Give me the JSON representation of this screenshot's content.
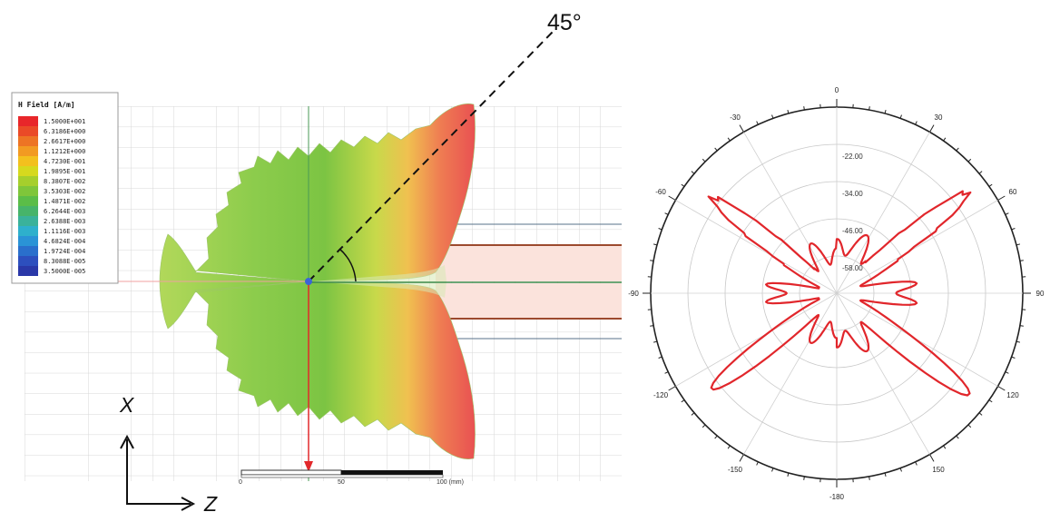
{
  "field_plot": {
    "angle_annotation": "45°",
    "legend": {
      "title": "H Field [A/m]",
      "entries": [
        {
          "label": "1.5000E+001",
          "color": "#e8262a"
        },
        {
          "label": "6.3186E+000",
          "color": "#ea4a27"
        },
        {
          "label": "2.6617E+000",
          "color": "#ed7424"
        },
        {
          "label": "1.1212E+000",
          "color": "#f29a22"
        },
        {
          "label": "4.7230E-001",
          "color": "#f3c01e"
        },
        {
          "label": "1.9895E-001",
          "color": "#d6d91e"
        },
        {
          "label": "8.3807E-002",
          "color": "#a6cf2c"
        },
        {
          "label": "3.5303E-002",
          "color": "#7fc63a"
        },
        {
          "label": "1.4871E-002",
          "color": "#5bbd48"
        },
        {
          "label": "6.2644E-003",
          "color": "#47b46a"
        },
        {
          "label": "2.6388E-003",
          "color": "#3ab29a"
        },
        {
          "label": "1.1116E-003",
          "color": "#2eb0cc"
        },
        {
          "label": "4.6824E-004",
          "color": "#2a93d6"
        },
        {
          "label": "1.9724E-004",
          "color": "#2a6fcc"
        },
        {
          "label": "8.3088E-005",
          "color": "#2d4fbe"
        },
        {
          "label": "3.5000E-005",
          "color": "#2a38a8"
        }
      ]
    },
    "scale_bar": {
      "labels": [
        "0",
        "50",
        "100 (mm)"
      ]
    },
    "axes": {
      "vertical": "X",
      "horizontal": "Z"
    }
  },
  "polar_plot": {
    "angle_labels": [
      "0",
      "30",
      "60",
      "90",
      "120",
      "150",
      "-180",
      "-150",
      "-120",
      "-90",
      "-60",
      "-30"
    ],
    "angles_deg": [
      0,
      30,
      60,
      90,
      120,
      150,
      180,
      -150,
      -120,
      -90,
      -60,
      -30
    ],
    "radial_labels": [
      "-22.00",
      "-34.00",
      "-46.00",
      "-58.00"
    ],
    "radial_values": [
      -22,
      -34,
      -46,
      -58
    ],
    "range": {
      "outer": -10,
      "center": -70
    },
    "trace_color": "#e1262b"
  }
}
